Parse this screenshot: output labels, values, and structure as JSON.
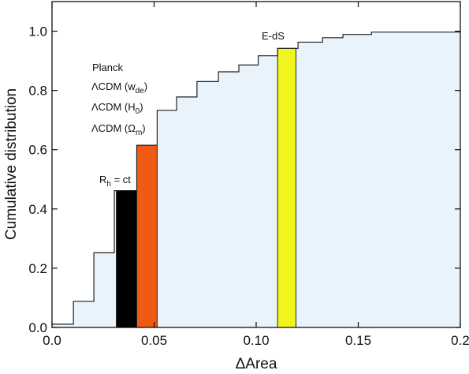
{
  "chart_data": {
    "type": "step",
    "xlabel": "ΔArea",
    "ylabel": "Cumulative distribution",
    "xlim": [
      0.0,
      0.2
    ],
    "ylim": [
      0.0,
      1.1
    ],
    "x_ticks": [
      "0.0",
      "0.05",
      "0.10",
      "0.15",
      "0.2"
    ],
    "y_ticks": [
      "0.0",
      "0.2",
      "0.4",
      "0.6",
      "0.8",
      "1.0"
    ],
    "fill_color": "#e8f3fb",
    "step_color": "#222222",
    "cdf_steps": [
      {
        "x0": 0.0,
        "x1": 0.0105,
        "y": 0.011
      },
      {
        "x0": 0.0105,
        "x1": 0.0205,
        "y": 0.088
      },
      {
        "x0": 0.0205,
        "x1": 0.0305,
        "y": 0.252
      },
      {
        "x0": 0.0305,
        "x1": 0.0415,
        "y": 0.462
      },
      {
        "x0": 0.0415,
        "x1": 0.0515,
        "y": 0.615
      },
      {
        "x0": 0.0515,
        "x1": 0.061,
        "y": 0.733
      },
      {
        "x0": 0.061,
        "x1": 0.071,
        "y": 0.778
      },
      {
        "x0": 0.071,
        "x1": 0.0815,
        "y": 0.83
      },
      {
        "x0": 0.0815,
        "x1": 0.0915,
        "y": 0.863
      },
      {
        "x0": 0.0915,
        "x1": 0.101,
        "y": 0.886
      },
      {
        "x0": 0.101,
        "x1": 0.1105,
        "y": 0.917
      },
      {
        "x0": 0.1105,
        "x1": 0.1205,
        "y": 0.942
      },
      {
        "x0": 0.1205,
        "x1": 0.1325,
        "y": 0.963
      },
      {
        "x0": 0.1325,
        "x1": 0.1425,
        "y": 0.978
      },
      {
        "x0": 0.1425,
        "x1": 0.1565,
        "y": 0.989
      },
      {
        "x0": 0.1565,
        "x1": 0.2,
        "y": 0.997
      }
    ],
    "highlight_bars": [
      {
        "label": "R_h = ct",
        "x0": 0.0315,
        "x1": 0.0415,
        "y": 0.462,
        "color": "#000000"
      },
      {
        "label": "ΛCDM (Ω_m)",
        "x0": 0.0415,
        "x1": 0.0515,
        "y": 0.615,
        "color": "#f05a14"
      },
      {
        "label": "E-dS",
        "x0": 0.1105,
        "x1": 0.1195,
        "y": 0.942,
        "color": "#f2f51d"
      }
    ],
    "annotations": {
      "planck": "Planck",
      "lcdm_wde": {
        "main": "ΛCDM (w",
        "sub": "de",
        "tail": ")"
      },
      "lcdm_h0": {
        "main": "ΛCDM (H",
        "sub": "0",
        "tail": ")"
      },
      "lcdm_om": {
        "main": "ΛCDM (Ω",
        "sub": "m",
        "tail": ")"
      },
      "rh": {
        "main": "R",
        "sub": "h",
        "tail": " = ct"
      },
      "eds": "E-dS"
    }
  }
}
